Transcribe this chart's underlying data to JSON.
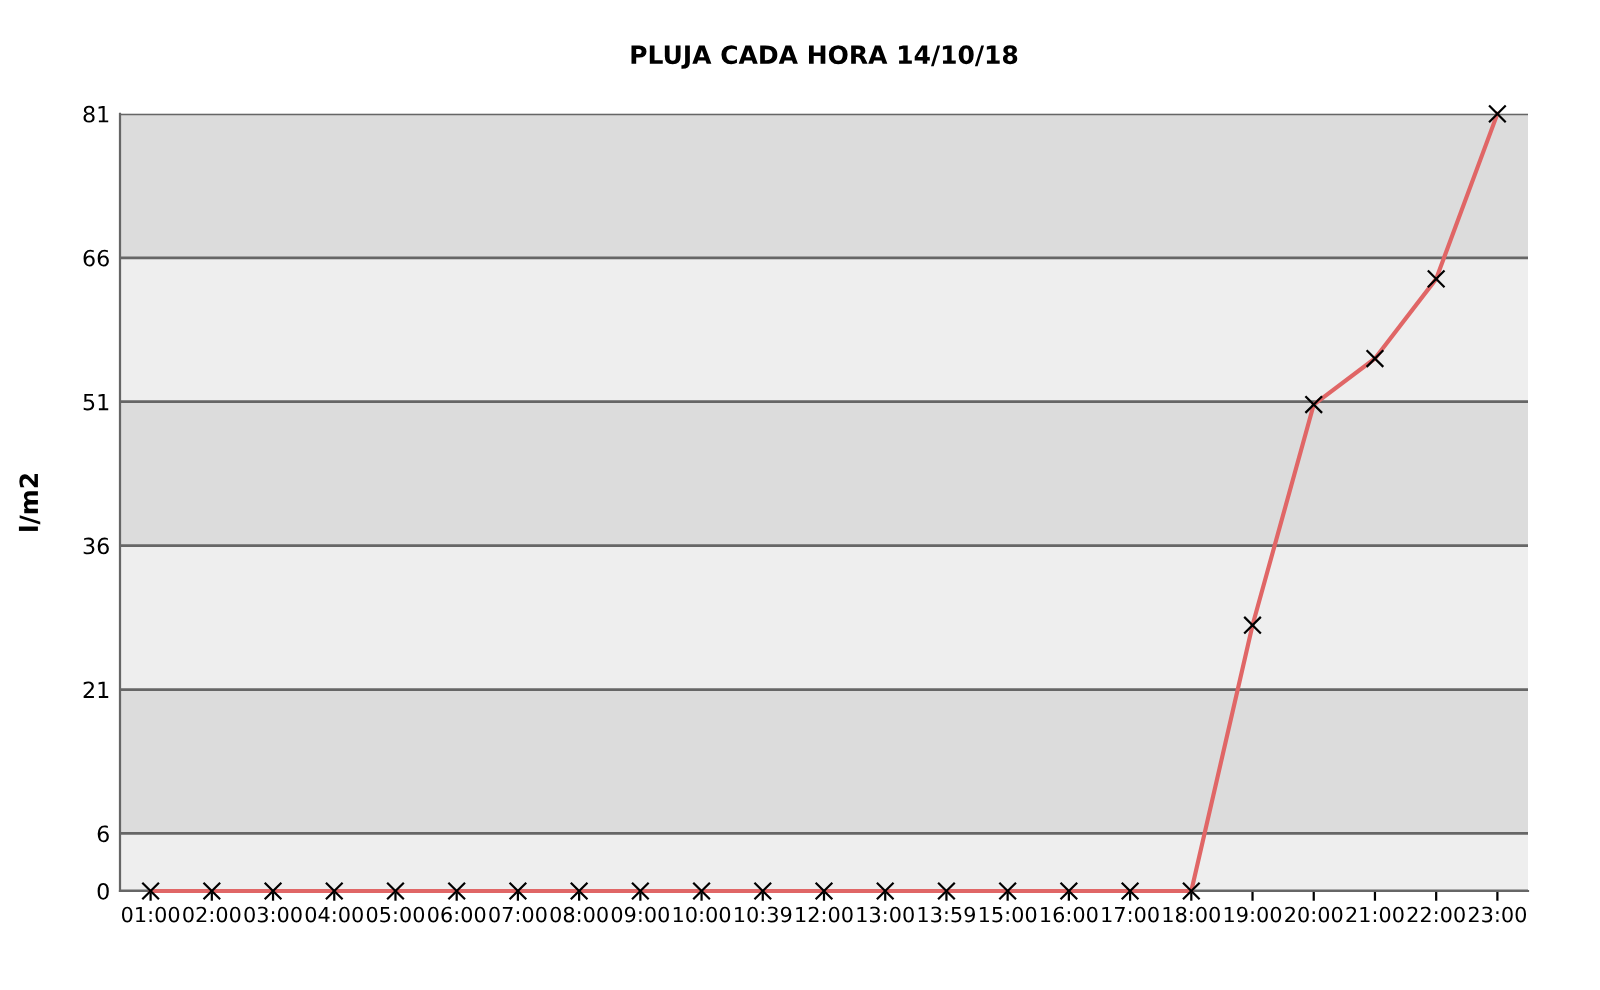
{
  "chart_data": {
    "type": "line",
    "title": "PLUJA CADA HORA 14/10/18",
    "ylabel": "l/m2",
    "categories": [
      "01:00",
      "02:00",
      "03:00",
      "04:00",
      "05:00",
      "06:00",
      "07:00",
      "08:00",
      "09:00",
      "10:00",
      "10:39",
      "12:00",
      "13:00",
      "13:59",
      "15:00",
      "16:00",
      "17:00",
      "18:00",
      "19:00",
      "20:00",
      "21:00",
      "22:00",
      "23:00"
    ],
    "series": [
      {
        "color": "#e06666",
        "values": [
          0,
          0,
          0,
          0,
          0,
          0,
          0,
          0,
          0,
          0,
          0,
          0,
          0,
          0,
          0,
          0,
          0,
          0,
          27.7,
          50.7,
          55.5,
          63.8,
          81
        ]
      }
    ],
    "ylim": [
      0,
      81
    ],
    "yticks": [
      0,
      6,
      21,
      36,
      51,
      66,
      81
    ],
    "grid": "y",
    "marker": "cross",
    "line_style": "solid",
    "legend": false
  }
}
